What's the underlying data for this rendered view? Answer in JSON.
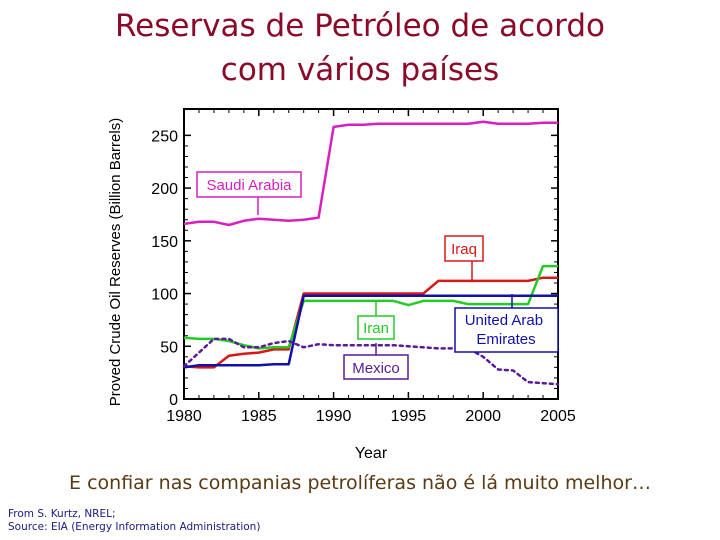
{
  "slide": {
    "title_line1": "Reservas de Petróleo de acordo",
    "title_line2": "com vários países",
    "caption": "E confiar nas companias petrolíferas não é lá muito melhor…",
    "source_line1": "From S. Kurtz, NREL;",
    "source_line2": "Source: EIA (Energy Information Administration)"
  },
  "chart_data": {
    "type": "line",
    "title": "",
    "xlabel": "Year",
    "ylabel": "Proved Crude Oil Reserves (Billion Barrels)",
    "xlim": [
      1980,
      2005
    ],
    "ylim": [
      0,
      275
    ],
    "xticks": [
      1980,
      1985,
      1990,
      1995,
      2000,
      2005
    ],
    "yticks": [
      0,
      50,
      100,
      150,
      200,
      250
    ],
    "grid": false,
    "series": [
      {
        "name": "Saudi Arabia",
        "color": "#d81fc0",
        "style": "solid",
        "label_color": "#d81fc0",
        "x": [
          1980,
          1981,
          1982,
          1983,
          1984,
          1985,
          1986,
          1987,
          1988,
          1989,
          1990,
          1991,
          1992,
          1993,
          1994,
          1995,
          1996,
          1997,
          1998,
          1999,
          2000,
          2001,
          2002,
          2003,
          2004,
          2005
        ],
        "y": [
          166,
          168,
          168,
          165,
          169,
          171,
          170,
          169,
          170,
          172,
          258,
          260,
          260,
          261,
          261,
          261,
          261,
          261,
          261,
          261,
          263,
          261,
          261,
          261,
          262,
          262
        ]
      },
      {
        "name": "Iraq",
        "color": "#d81818",
        "style": "solid",
        "label_color": "#d81818",
        "x": [
          1980,
          1981,
          1982,
          1983,
          1984,
          1985,
          1986,
          1987,
          1988,
          1989,
          1990,
          1991,
          1992,
          1993,
          1994,
          1995,
          1996,
          1997,
          1998,
          1999,
          2000,
          2001,
          2002,
          2003,
          2004,
          2005
        ],
        "y": [
          31,
          30,
          30,
          41,
          43,
          44,
          47,
          47,
          100,
          100,
          100,
          100,
          100,
          100,
          100,
          100,
          100,
          112,
          112,
          112,
          112,
          112,
          112,
          112,
          115,
          115
        ]
      },
      {
        "name": "Iran",
        "color": "#22cc22",
        "style": "solid",
        "label_color": "#22cc22",
        "x": [
          1980,
          1981,
          1982,
          1983,
          1984,
          1985,
          1986,
          1987,
          1988,
          1989,
          1990,
          1991,
          1992,
          1993,
          1994,
          1995,
          1996,
          1997,
          1998,
          1999,
          2000,
          2001,
          2002,
          2003,
          2004,
          2005
        ],
        "y": [
          58,
          57,
          57,
          55,
          51,
          48,
          49,
          49,
          93,
          93,
          93,
          93,
          93,
          93,
          93,
          89,
          93,
          93,
          93,
          90,
          90,
          90,
          90,
          90,
          126,
          126
        ]
      },
      {
        "name": "United Arab Emirates",
        "color": "#1111aa",
        "style": "solid",
        "label_color": "#1111aa",
        "x": [
          1980,
          1981,
          1982,
          1983,
          1984,
          1985,
          1986,
          1987,
          1988,
          1989,
          1990,
          1991,
          1992,
          1993,
          1994,
          1995,
          1996,
          1997,
          1998,
          1999,
          2000,
          2001,
          2002,
          2003,
          2004,
          2005
        ],
        "y": [
          30,
          32,
          32,
          32,
          32,
          32,
          33,
          33,
          98,
          98,
          98,
          98,
          98,
          98,
          98,
          98,
          98,
          98,
          98,
          98,
          98,
          98,
          98,
          98,
          98,
          98
        ]
      },
      {
        "name": "Mexico",
        "color": "#5a1a9a",
        "style": "dotted",
        "label_color": "#5a1a9a",
        "x": [
          1980,
          1981,
          1982,
          1983,
          1984,
          1985,
          1986,
          1987,
          1988,
          1989,
          1990,
          1991,
          1992,
          1993,
          1994,
          1995,
          1996,
          1997,
          1998,
          1999,
          2000,
          2001,
          2002,
          2003,
          2004,
          2005
        ],
        "y": [
          31,
          44,
          57,
          57,
          49,
          49,
          53,
          55,
          49,
          52,
          51,
          51,
          51,
          51,
          51,
          50,
          49,
          48,
          48,
          48,
          40,
          28,
          27,
          16,
          15,
          14
        ]
      }
    ],
    "labels": [
      "Saudi Arabia",
      "Iraq",
      "Iran",
      "United Arab\nEmirates",
      "Mexico"
    ]
  }
}
